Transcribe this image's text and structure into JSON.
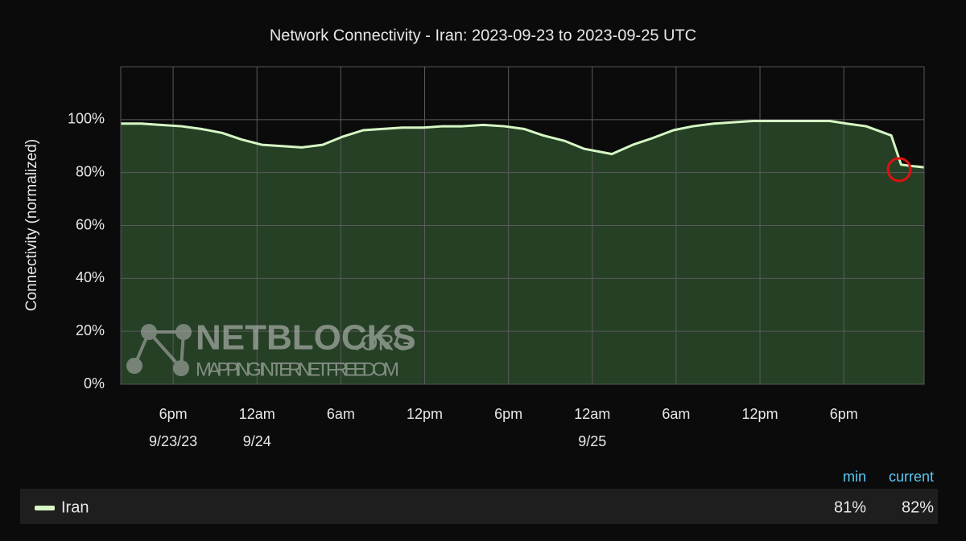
{
  "chart_data": {
    "type": "area",
    "title": "Network Connectivity - Iran: 2023-09-23 to 2023-09-25 UTC",
    "y_label": "Connectivity (normalized)",
    "x": [
      14.25,
      15.7,
      17.1,
      18.6,
      20.0,
      21.5,
      22.9,
      24.35,
      25.8,
      27.2,
      28.7,
      30.1,
      31.6,
      33.0,
      34.4,
      35.9,
      37.3,
      38.7,
      40.2,
      41.7,
      43.1,
      44.5,
      46.0,
      47.4,
      49.4,
      50.9,
      52.3,
      53.8,
      55.2,
      56.7,
      58.1,
      59.5,
      61.0,
      62.4,
      63.9,
      65.0,
      66.2,
      67.6,
      69.4,
      70.1,
      70.8,
      71.75
    ],
    "series": [
      {
        "name": "Iran",
        "color": "#d6f7c4",
        "values": [
          98.5,
          98.5,
          98,
          97.5,
          96.5,
          95,
          92.5,
          90.5,
          90,
          89.5,
          90.5,
          93.5,
          96,
          96.5,
          97,
          97,
          97.5,
          97.5,
          98,
          97.5,
          96.5,
          94,
          92,
          89,
          87,
          90.5,
          93,
          96,
          97.5,
          98.5,
          99,
          99.5,
          99.5,
          99.5,
          99.5,
          99.5,
          98.5,
          97.5,
          94,
          83,
          82.5,
          82
        ]
      }
    ],
    "xlim": [
      14.25,
      71.75
    ],
    "xticks": [
      {
        "value": 18,
        "label": "6pm",
        "date": "9/23/23"
      },
      {
        "value": 24,
        "label": "12am",
        "date": "9/24"
      },
      {
        "value": 30,
        "label": "6am"
      },
      {
        "value": 36,
        "label": "12pm"
      },
      {
        "value": 42,
        "label": "6pm"
      },
      {
        "value": 48,
        "label": "12am",
        "date": "9/25"
      },
      {
        "value": 54,
        "label": "6am"
      },
      {
        "value": 60,
        "label": "12pm"
      },
      {
        "value": 66,
        "label": "6pm"
      }
    ],
    "ylim": [
      0,
      120
    ],
    "yticks": [
      {
        "value": 0,
        "label": "0%"
      },
      {
        "value": 20,
        "label": "20%"
      },
      {
        "value": 40,
        "label": "40%"
      },
      {
        "value": 60,
        "label": "60%"
      },
      {
        "value": 80,
        "label": "80%"
      },
      {
        "value": 100,
        "label": "100%"
      }
    ],
    "grid": true,
    "watermark": {
      "brand": "NETBLOCKS",
      "suffix": ".ORG",
      "tagline": "MAPPING INTERNET FREEDOM"
    },
    "legend_table": {
      "headers": [
        "min",
        "current"
      ],
      "cells": [
        "81%",
        "82%"
      ]
    }
  }
}
